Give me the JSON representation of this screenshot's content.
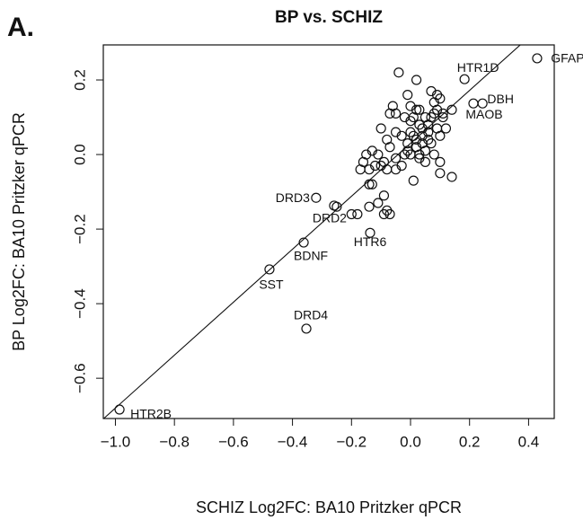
{
  "panel_label": "A.",
  "chart_data": {
    "type": "scatter",
    "title": "BP vs. SCHIZ",
    "x_label": "SCHIZ Log2FC: BA10 Pritzker qPCR",
    "y_label": "BP Log2FC: BA10 Pritzker qPCR",
    "xlim": [
      -1.041,
      0.487
    ],
    "ylim": [
      -0.708,
      0.294
    ],
    "xticks": [
      {
        "value": -1.0,
        "label": "−1.0"
      },
      {
        "value": -0.8,
        "label": "−0.8"
      },
      {
        "value": -0.6,
        "label": "−0.6"
      },
      {
        "value": -0.4,
        "label": "−0.4"
      },
      {
        "value": -0.2,
        "label": "−0.2"
      },
      {
        "value": 0.0,
        "label": "0.0"
      },
      0.2,
      0.4
    ],
    "yticks": [
      {
        "value": -0.6,
        "label": "−0.6"
      },
      {
        "value": -0.4,
        "label": "−0.4"
      },
      {
        "value": -0.2,
        "label": "−0.2"
      },
      {
        "value": 0.0,
        "label": "0.0"
      },
      0.2
    ],
    "abline": {
      "intercept": 0.03,
      "slope": 0.71
    },
    "point_color": "#111111",
    "points": {
      "x": [
        -0.04,
        0.02,
        -0.01,
        0.07,
        0.09,
        0.1,
        -0.06,
        -0.07,
        -0.05,
        0.0,
        0.02,
        0.03,
        0.14,
        0.05,
        0.07,
        0.08,
        0.09,
        0.11,
        -0.02,
        0.0,
        0.03,
        0.06,
        0.09,
        0.12,
        -0.1,
        -0.08,
        -0.05,
        0.0,
        0.01,
        0.04,
        0.06,
        0.1,
        -0.01,
        0.02,
        0.04,
        0.07,
        -0.07,
        -0.11,
        -0.13,
        -0.15,
        -0.16,
        -0.12,
        -0.09,
        -0.05,
        -0.02,
        0.0,
        0.03,
        0.05,
        0.08,
        0.1,
        0.14,
        0.1,
        0.01,
        -0.05,
        -0.08,
        -0.1,
        -0.14,
        -0.17,
        -0.13,
        -0.14,
        -0.09,
        -0.11,
        -0.08,
        -0.09,
        -0.07,
        -0.2,
        -0.18,
        -0.25,
        -0.14,
        -0.03,
        0.06,
        0.04,
        0.02,
        -0.03,
        0.11,
        0.08,
        0.01,
        -0.01,
        0.05,
        0.03
      ],
      "y": [
        0.22,
        0.2,
        0.16,
        0.17,
        0.16,
        0.15,
        0.13,
        0.11,
        0.11,
        0.13,
        0.12,
        0.12,
        0.12,
        0.1,
        0.1,
        0.11,
        0.12,
        0.1,
        0.1,
        0.09,
        0.08,
        0.08,
        0.07,
        0.07,
        0.07,
        0.04,
        0.06,
        0.06,
        0.05,
        0.05,
        0.04,
        0.05,
        0.03,
        0.02,
        0.03,
        0.03,
        0.02,
        0.0,
        0.01,
        0.0,
        -0.02,
        -0.03,
        -0.02,
        -0.01,
        0.0,
        0.0,
        -0.01,
        -0.02,
        0.0,
        -0.02,
        -0.06,
        -0.05,
        -0.07,
        -0.04,
        -0.04,
        -0.03,
        -0.04,
        -0.04,
        -0.08,
        -0.08,
        -0.11,
        -0.13,
        -0.15,
        -0.16,
        -0.16,
        -0.16,
        -0.16,
        -0.14,
        -0.14,
        -0.03,
        0.06,
        0.07,
        0.04,
        0.05,
        0.11,
        0.14,
        0.1,
        0.01,
        0.01,
        0.0
      ]
    },
    "labeled_points": [
      {
        "label": "GFAP",
        "x": 0.429,
        "y": 0.258,
        "color": "#e8262a"
      },
      {
        "label": "HTR1D",
        "x": 0.183,
        "y": 0.202,
        "color": "#e8262a"
      },
      {
        "label": "DBH",
        "x": 0.244,
        "y": 0.137,
        "color": "#e8262a"
      },
      {
        "label": "MAOB",
        "x": 0.213,
        "y": 0.137,
        "color": "#e8262a"
      },
      {
        "label": "DRD3",
        "x": -0.32,
        "y": -0.116,
        "color": "#2a6fb5"
      },
      {
        "label": "DRD2",
        "x": -0.259,
        "y": -0.137,
        "color": "#2a6fb5"
      },
      {
        "label": "HTR6",
        "x": -0.137,
        "y": -0.21,
        "color": "#2a6fb5"
      },
      {
        "label": "BDNF",
        "x": -0.362,
        "y": -0.236,
        "color": "#2a6fb5"
      },
      {
        "label": "SST",
        "x": -0.478,
        "y": -0.308,
        "color": "#2a6fb5"
      },
      {
        "label": "DRD4",
        "x": -0.353,
        "y": -0.467,
        "color": "#2a6fb5"
      },
      {
        "label": "HTR2B",
        "x": -0.986,
        "y": -0.684,
        "color": "#2a6fb5"
      }
    ]
  }
}
